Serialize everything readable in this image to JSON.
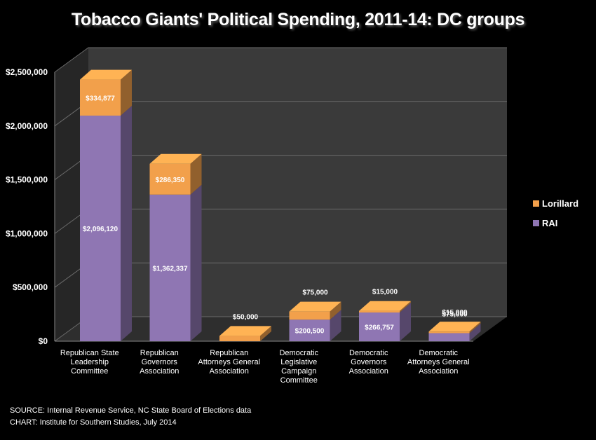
{
  "chart_data": {
    "type": "bar",
    "stacked": true,
    "title": "Tobacco Giants' Political Spending, 2011-14: DC groups",
    "categories": [
      [
        "Republican State",
        "Leadership",
        "Committee"
      ],
      [
        "Republican",
        "Governors",
        "Association"
      ],
      [
        "Republican",
        "Attorneys General",
        "Association"
      ],
      [
        "Democratic",
        "Legislative",
        "Campaign",
        "Committee"
      ],
      [
        "Democratic",
        "Governors",
        "Association"
      ],
      [
        "Democratic",
        "Attorneys General",
        "Association"
      ]
    ],
    "series": [
      {
        "name": "RAI",
        "color": "#8f76b3",
        "values": [
          2096120,
          1362337,
          0,
          200500,
          266757,
          75000
        ],
        "labels": [
          "$2,096,120",
          "$1,362,337",
          "",
          "$200,500",
          "$266,757",
          "$75,000"
        ]
      },
      {
        "name": "Lorillard",
        "color": "#f2a04b",
        "values": [
          334877,
          286350,
          50000,
          75000,
          15000,
          15000
        ],
        "labels": [
          "$334,877",
          "$286,350",
          "$50,000",
          "$75,000",
          "$15,000",
          "$15,000"
        ]
      }
    ],
    "yticks": [
      "$0",
      "$500,000",
      "$1,000,000",
      "$1,500,000",
      "$2,000,000",
      "$2,500,000"
    ],
    "ylim": [
      0,
      2500000
    ],
    "grid": true,
    "legend_position": "right",
    "legend_order": [
      "Lorillard",
      "RAI"
    ]
  },
  "source": {
    "line1": "SOURCE: Internal Revenue Service, NC State Board of Elections data",
    "line2": "CHART: Institute for Southern Studies, July 2014"
  }
}
